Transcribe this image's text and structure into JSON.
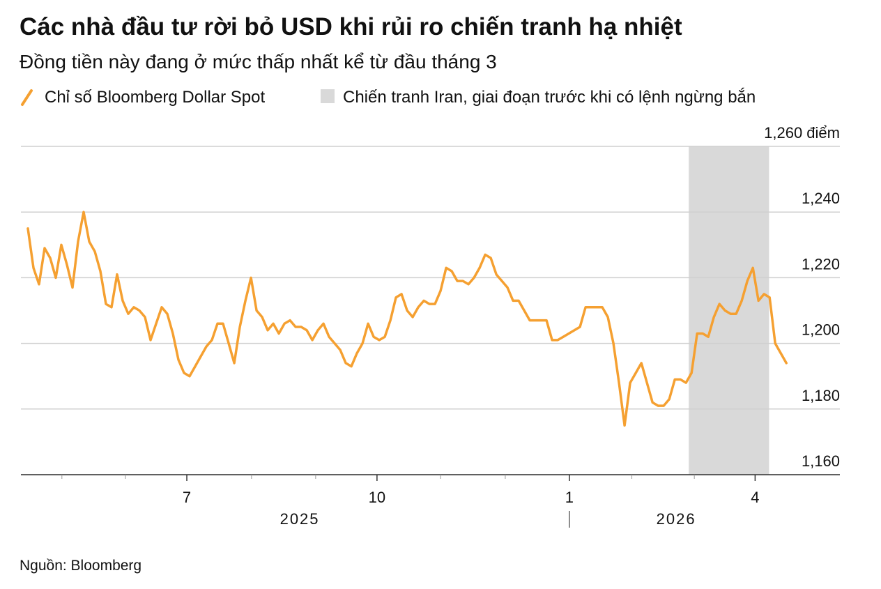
{
  "chart_data": {
    "type": "line",
    "title": "Các nhà đầu tư rời bỏ USD khi rủi ro chiến tranh hạ nhiệt",
    "subtitle": "Đồng tiền này đang ở mức thấp nhất kể từ đầu tháng 3",
    "source": "Nguồn: Bloomberg",
    "series": [
      {
        "name": "Chỉ số Bloomberg Dollar Spot",
        "color": "#f5a031",
        "values": [
          1235,
          1223,
          1218,
          1229,
          1226,
          1220,
          1230,
          1224,
          1217,
          1231,
          1240,
          1231,
          1228,
          1222,
          1212,
          1211,
          1221,
          1213,
          1209,
          1211,
          1210,
          1208,
          1201,
          1206,
          1211,
          1209,
          1203,
          1195,
          1191,
          1190,
          1193,
          1196,
          1199,
          1201,
          1206,
          1206,
          1200,
          1194,
          1205,
          1213,
          1220,
          1210,
          1208,
          1204,
          1206,
          1203,
          1206,
          1207,
          1205,
          1205,
          1204,
          1201,
          1204,
          1206,
          1202,
          1200,
          1198,
          1194,
          1193,
          1197,
          1200,
          1206,
          1202,
          1201,
          1202,
          1207,
          1214,
          1215,
          1210,
          1208,
          1211,
          1213,
          1212,
          1212,
          1216,
          1223,
          1222,
          1219,
          1219,
          1218,
          1220,
          1223,
          1227,
          1226,
          1221,
          1219,
          1217,
          1213,
          1213,
          1210,
          1207,
          1207,
          1207,
          1207,
          1201,
          1201,
          1202,
          1203,
          1204,
          1205,
          1211,
          1211,
          1211,
          1211,
          1208,
          1200,
          1188,
          1175,
          1188,
          1191,
          1194,
          1188,
          1182,
          1181,
          1181,
          1183,
          1189,
          1189,
          1188,
          1191,
          1203,
          1203,
          1202,
          1208,
          1212,
          1210,
          1209,
          1209,
          1213,
          1219,
          1223,
          1213,
          1215,
          1214,
          1200,
          1197,
          1194
        ]
      }
    ],
    "shade": {
      "label": "Chiến tranh Iran, giai đoạn trước khi có lệnh ngừng bắn",
      "color": "#d9d9d9",
      "range": [
        118.5,
        132.9
      ]
    },
    "xlim": [
      -1.25,
      145.6
    ],
    "xticks": [
      {
        "value": 28.5,
        "label": "7"
      },
      {
        "value": 62.6,
        "label": "10"
      },
      {
        "value": 97.1,
        "label": "1"
      },
      {
        "value": 130.4,
        "label": "4"
      }
    ],
    "minor_xticks": [
      6.1,
      17.5,
      40.1,
      51.6,
      74,
      85.6,
      108.3,
      119.5
    ],
    "years": [
      {
        "value": 48.75,
        "label": "2025"
      },
      {
        "value": 116.25,
        "label": "2026"
      }
    ],
    "year_dividers": [
      97.1
    ],
    "ylim": [
      1160,
      1260
    ],
    "yticks": [
      {
        "value": 1160,
        "label": "1,160"
      },
      {
        "value": 1180,
        "label": "1,180"
      },
      {
        "value": 1200,
        "label": "1,200"
      },
      {
        "value": 1220,
        "label": "1,220"
      },
      {
        "value": 1240,
        "label": "1,240"
      },
      {
        "value": 1260,
        "label": "1,260 điểm"
      }
    ],
    "grid": true
  }
}
